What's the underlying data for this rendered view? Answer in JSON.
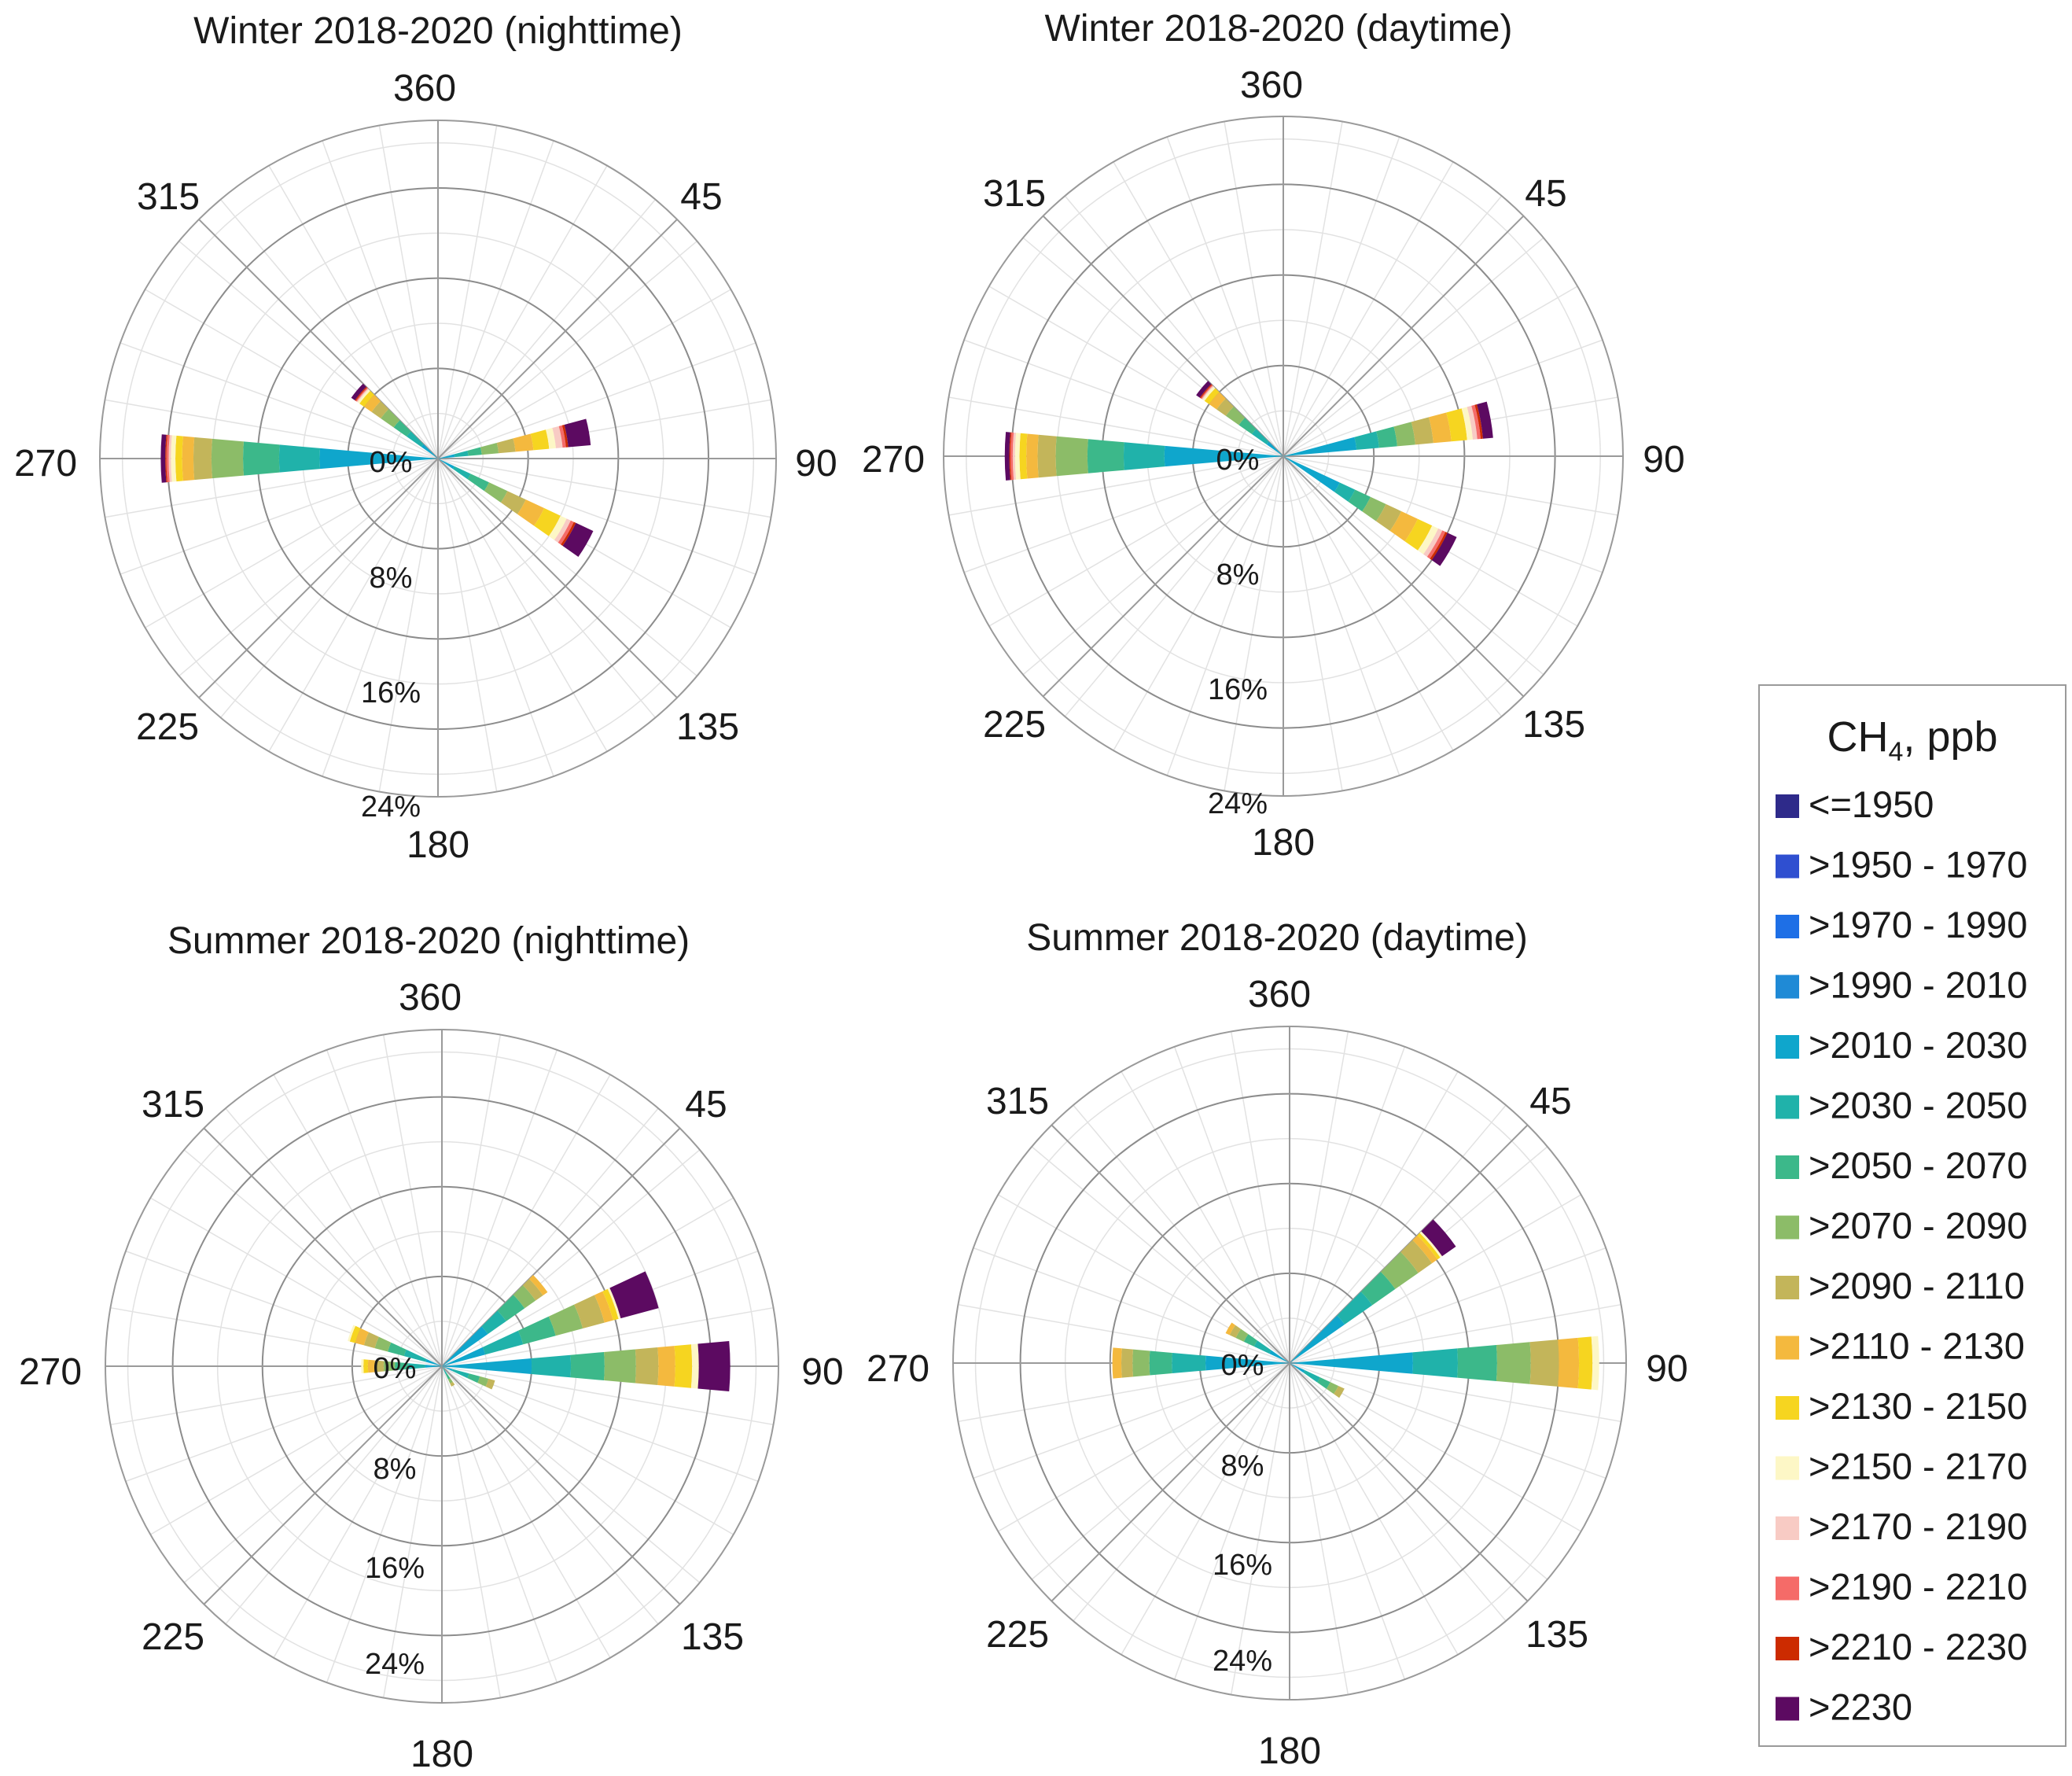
{
  "chart_data": [
    {
      "type": "windrose",
      "title": "Winter 2018-2020 (nighttime)",
      "direction_labels": [
        "360",
        "45",
        "90",
        "135",
        "180",
        "225",
        "270",
        "315"
      ],
      "radial_tick_labels": [
        "8%",
        "16%",
        "24%"
      ],
      "center_label": "0%",
      "rmax_percent": 30,
      "sector_width_deg": 10,
      "sectors": [
        {
          "dir": 80,
          "values": [
            0,
            0,
            0,
            0,
            1.5,
            1.2,
            1.2,
            1.5,
            1.5,
            1.6,
            1.4,
            0.6,
            0.6,
            0.3,
            0.2,
            2.0
          ]
        },
        {
          "dir": 120,
          "values": [
            0,
            0,
            0,
            0,
            1.6,
            1.6,
            1.8,
            1.8,
            1.8,
            1.8,
            1.6,
            0.6,
            0.4,
            0.3,
            0.2,
            1.7
          ]
        },
        {
          "dir": 270,
          "values": [
            0,
            0,
            0,
            0,
            10.5,
            3.6,
            3.2,
            2.8,
            1.6,
            1.0,
            0.6,
            0.4,
            0.2,
            0.2,
            0.1,
            0.4
          ]
        },
        {
          "dir": 310,
          "values": [
            0,
            0,
            0,
            0,
            1.8,
            1.6,
            1.4,
            1.4,
            1.0,
            0.8,
            0.5,
            0.2,
            0.1,
            0.1,
            0.1,
            0.4
          ]
        }
      ]
    },
    {
      "type": "windrose",
      "title": "Winter 2018-2020 (daytime)",
      "direction_labels": [
        "360",
        "45",
        "90",
        "135",
        "180",
        "225",
        "270",
        "315"
      ],
      "radial_tick_labels": [
        "8%",
        "16%",
        "24%"
      ],
      "center_label": "0%",
      "rmax_percent": 30,
      "sector_width_deg": 10,
      "sectors": [
        {
          "dir": 80,
          "values": [
            0,
            0,
            0,
            0,
            6.5,
            2.0,
            1.6,
            1.6,
            1.6,
            1.6,
            1.4,
            0.5,
            0.4,
            0.3,
            0.2,
            0.9
          ]
        },
        {
          "dir": 120,
          "values": [
            0,
            0,
            0,
            0,
            5.5,
            1.5,
            1.5,
            1.5,
            1.5,
            1.6,
            1.4,
            0.6,
            0.4,
            0.3,
            0.2,
            0.9
          ]
        },
        {
          "dir": 270,
          "values": [
            0,
            0,
            0,
            0,
            10.5,
            3.6,
            3.2,
            2.8,
            1.6,
            1.0,
            0.6,
            0.4,
            0.2,
            0.2,
            0.1,
            0.4
          ]
        },
        {
          "dir": 310,
          "values": [
            0,
            0,
            0,
            0,
            1.8,
            1.6,
            1.4,
            1.4,
            1.0,
            0.8,
            0.5,
            0.2,
            0.1,
            0.1,
            0.1,
            0.4
          ]
        }
      ]
    },
    {
      "type": "windrose",
      "title": "Summer 2018-2020 (nighttime)",
      "direction_labels": [
        "360",
        "45",
        "90",
        "135",
        "180",
        "225",
        "270",
        "315"
      ],
      "radial_tick_labels": [
        "8%",
        "16%",
        "24%"
      ],
      "center_label": "0%",
      "rmax_percent": 30,
      "sector_width_deg": 10,
      "sectors": [
        {
          "dir": 50,
          "values": [
            0,
            0,
            0,
            0,
            5.0,
            2.0,
            2.0,
            1.2,
            0.8,
            0.5,
            0,
            0,
            0,
            0,
            0,
            0
          ]
        },
        {
          "dir": 70,
          "values": [
            0,
            0,
            0,
            0,
            4.0,
            3.5,
            3.0,
            2.5,
            2.0,
            0.8,
            0.5,
            0.2,
            0,
            0,
            0,
            3.5
          ]
        },
        {
          "dir": 90,
          "values": [
            0,
            0,
            0,
            0,
            8.0,
            3.5,
            3.0,
            2.8,
            2.0,
            1.5,
            1.5,
            0.6,
            0,
            0,
            0,
            2.8
          ]
        },
        {
          "dir": 110,
          "values": [
            0,
            0,
            0,
            0,
            1.0,
            1.5,
            1.0,
            0.8,
            0.6,
            0,
            0,
            0,
            0,
            0,
            0,
            0
          ]
        },
        {
          "dir": 150,
          "values": [
            0,
            0,
            0,
            0,
            0,
            0.8,
            0.5,
            0.4,
            0.3,
            0,
            0,
            0,
            0,
            0,
            0,
            0
          ]
        },
        {
          "dir": 270,
          "values": [
            0,
            0,
            0,
            0,
            1.5,
            1.5,
            1.2,
            1.0,
            0.8,
            0.6,
            0.4,
            0.2,
            0,
            0,
            0,
            0
          ]
        },
        {
          "dir": 290,
          "values": [
            0,
            0,
            0,
            0,
            1.5,
            2.0,
            1.5,
            1.2,
            1.0,
            0.8,
            0.5,
            0.2,
            0,
            0,
            0,
            0
          ]
        }
      ]
    },
    {
      "type": "windrose",
      "title": "Summer 2018-2020 (daytime)",
      "direction_labels": [
        "360",
        "45",
        "90",
        "135",
        "180",
        "225",
        "270",
        "315"
      ],
      "radial_tick_labels": [
        "8%",
        "16%",
        "24%"
      ],
      "center_label": "0%",
      "rmax_percent": 30,
      "sector_width_deg": 10,
      "sectors": [
        {
          "dir": 50,
          "values": [
            0,
            0,
            0,
            0,
            6.0,
            3.0,
            2.5,
            2.5,
            1.5,
            0.6,
            0.3,
            0.2,
            0,
            0,
            0,
            1.5
          ]
        },
        {
          "dir": 90,
          "values": [
            0,
            0,
            0,
            0,
            11.0,
            4.0,
            3.5,
            3.0,
            2.5,
            1.8,
            1.2,
            0.6,
            0,
            0,
            0,
            0
          ]
        },
        {
          "dir": 120,
          "values": [
            0,
            0,
            0,
            0,
            1.5,
            1.5,
            1.0,
            0.8,
            0.6,
            0,
            0,
            0,
            0,
            0,
            0,
            0
          ]
        },
        {
          "dir": 270,
          "values": [
            0,
            0,
            0,
            0,
            7.5,
            3.0,
            2.0,
            1.5,
            1.0,
            0.8,
            0,
            0,
            0,
            0,
            0,
            0
          ]
        },
        {
          "dir": 300,
          "values": [
            0,
            0,
            0,
            0,
            2.0,
            1.5,
            1.0,
            0.8,
            0.6,
            0.4,
            0,
            0,
            0,
            0,
            0,
            0
          ]
        }
      ]
    }
  ],
  "legend": {
    "title_prefix": "CH",
    "title_subscript": "4",
    "title_suffix": ", ppb",
    "items": [
      {
        "label": "<=1950",
        "color": "#2e2a8a"
      },
      {
        "label": ">1950 - 1970",
        "color": "#2f4fd0"
      },
      {
        "label": ">1970 - 1990",
        "color": "#1e6fe6"
      },
      {
        "label": ">1990 - 2010",
        "color": "#1f8ad6"
      },
      {
        "label": ">2010 - 2030",
        "color": "#0fa6cc"
      },
      {
        "label": ">2030 - 2050",
        "color": "#20b2aa"
      },
      {
        "label": ">2050 - 2070",
        "color": "#3cb88a"
      },
      {
        "label": ">2070 - 2090",
        "color": "#8cbc68"
      },
      {
        "label": ">2090 - 2110",
        "color": "#c3b55a"
      },
      {
        "label": ">2110 - 2130",
        "color": "#f4b93e"
      },
      {
        "label": ">2130 - 2150",
        "color": "#f6d520"
      },
      {
        "label": ">2150 - 2170",
        "color": "#fdf7c6"
      },
      {
        "label": ">2170 - 2190",
        "color": "#f8cbc4"
      },
      {
        "label": ">2190 - 2210",
        "color": "#f56b68"
      },
      {
        "label": ">2210 - 2230",
        "color": "#cc2b00"
      },
      {
        "label": ">2230",
        "color": "#5c0a61"
      }
    ]
  }
}
